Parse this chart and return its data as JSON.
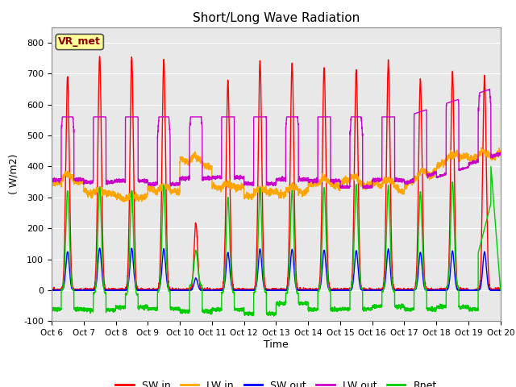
{
  "title": "Short/Long Wave Radiation",
  "xlabel": "Time",
  "ylabel": "( W/m2)",
  "ylim": [
    -100,
    850
  ],
  "yticks": [
    -100,
    0,
    100,
    200,
    300,
    400,
    500,
    600,
    700,
    800
  ],
  "colors": {
    "SW_in": "#ff0000",
    "LW_in": "#ffa500",
    "SW_out": "#0000ff",
    "LW_out": "#cc00cc",
    "Rnet": "#00cc00"
  },
  "legend_labels": [
    "SW in",
    "LW in",
    "SW out",
    "LW out",
    "Rnet"
  ],
  "legend_colors": [
    "#ff0000",
    "#ffa500",
    "#0000ff",
    "#cc00cc",
    "#00cc00"
  ],
  "annotation_text": "VR_met",
  "annotation_color": "#8b0000",
  "annotation_bg": "#ffff99",
  "background_color": "#e8e8e8",
  "n_days": 14,
  "start_day": 6,
  "pts_per_day": 288
}
